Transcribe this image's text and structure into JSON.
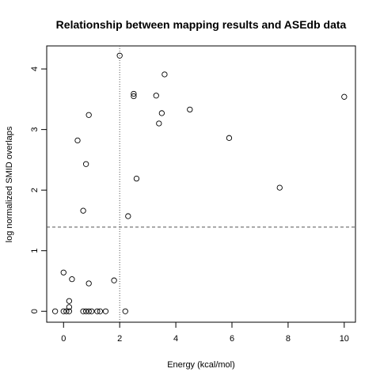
{
  "chart_data": {
    "type": "scatter",
    "title": "Relationship between mapping results and ASEdb data",
    "xlabel": "Energy (kcal/mol)",
    "ylabel": "log normalized SMID overlaps",
    "xlim": [
      -0.6,
      10.4
    ],
    "ylim": [
      -0.18,
      4.38
    ],
    "x_ticks": [
      0,
      2,
      4,
      6,
      8,
      10
    ],
    "y_ticks": [
      0,
      1,
      2,
      3,
      4
    ],
    "grid": false,
    "reference_lines": {
      "horizontal_y": 1.39,
      "vertical_x": 2.0
    },
    "points": [
      {
        "x": -0.3,
        "y": 0.0
      },
      {
        "x": 0.0,
        "y": 0.0
      },
      {
        "x": 0.1,
        "y": 0.0
      },
      {
        "x": 0.2,
        "y": 0.0
      },
      {
        "x": 0.0,
        "y": 0.64
      },
      {
        "x": 0.2,
        "y": 0.07
      },
      {
        "x": 0.2,
        "y": 0.17
      },
      {
        "x": 0.3,
        "y": 0.53
      },
      {
        "x": 0.5,
        "y": 2.82
      },
      {
        "x": 0.7,
        "y": 1.66
      },
      {
        "x": 0.7,
        "y": 0.0
      },
      {
        "x": 0.8,
        "y": 0.0
      },
      {
        "x": 0.8,
        "y": 2.43
      },
      {
        "x": 0.9,
        "y": 3.24
      },
      {
        "x": 0.9,
        "y": 0.46
      },
      {
        "x": 0.9,
        "y": 0.0
      },
      {
        "x": 1.0,
        "y": 0.0
      },
      {
        "x": 1.2,
        "y": 0.0
      },
      {
        "x": 1.3,
        "y": 0.0
      },
      {
        "x": 1.5,
        "y": 0.0
      },
      {
        "x": 1.8,
        "y": 0.51
      },
      {
        "x": 2.0,
        "y": 4.22
      },
      {
        "x": 2.2,
        "y": 0.0
      },
      {
        "x": 2.3,
        "y": 1.57
      },
      {
        "x": 2.5,
        "y": 3.59
      },
      {
        "x": 2.5,
        "y": 3.55
      },
      {
        "x": 2.6,
        "y": 2.19
      },
      {
        "x": 3.3,
        "y": 3.56
      },
      {
        "x": 3.4,
        "y": 3.1
      },
      {
        "x": 3.5,
        "y": 3.27
      },
      {
        "x": 3.6,
        "y": 3.91
      },
      {
        "x": 4.5,
        "y": 3.33
      },
      {
        "x": 5.9,
        "y": 2.86
      },
      {
        "x": 7.7,
        "y": 2.04
      },
      {
        "x": 10.0,
        "y": 3.54
      }
    ]
  }
}
